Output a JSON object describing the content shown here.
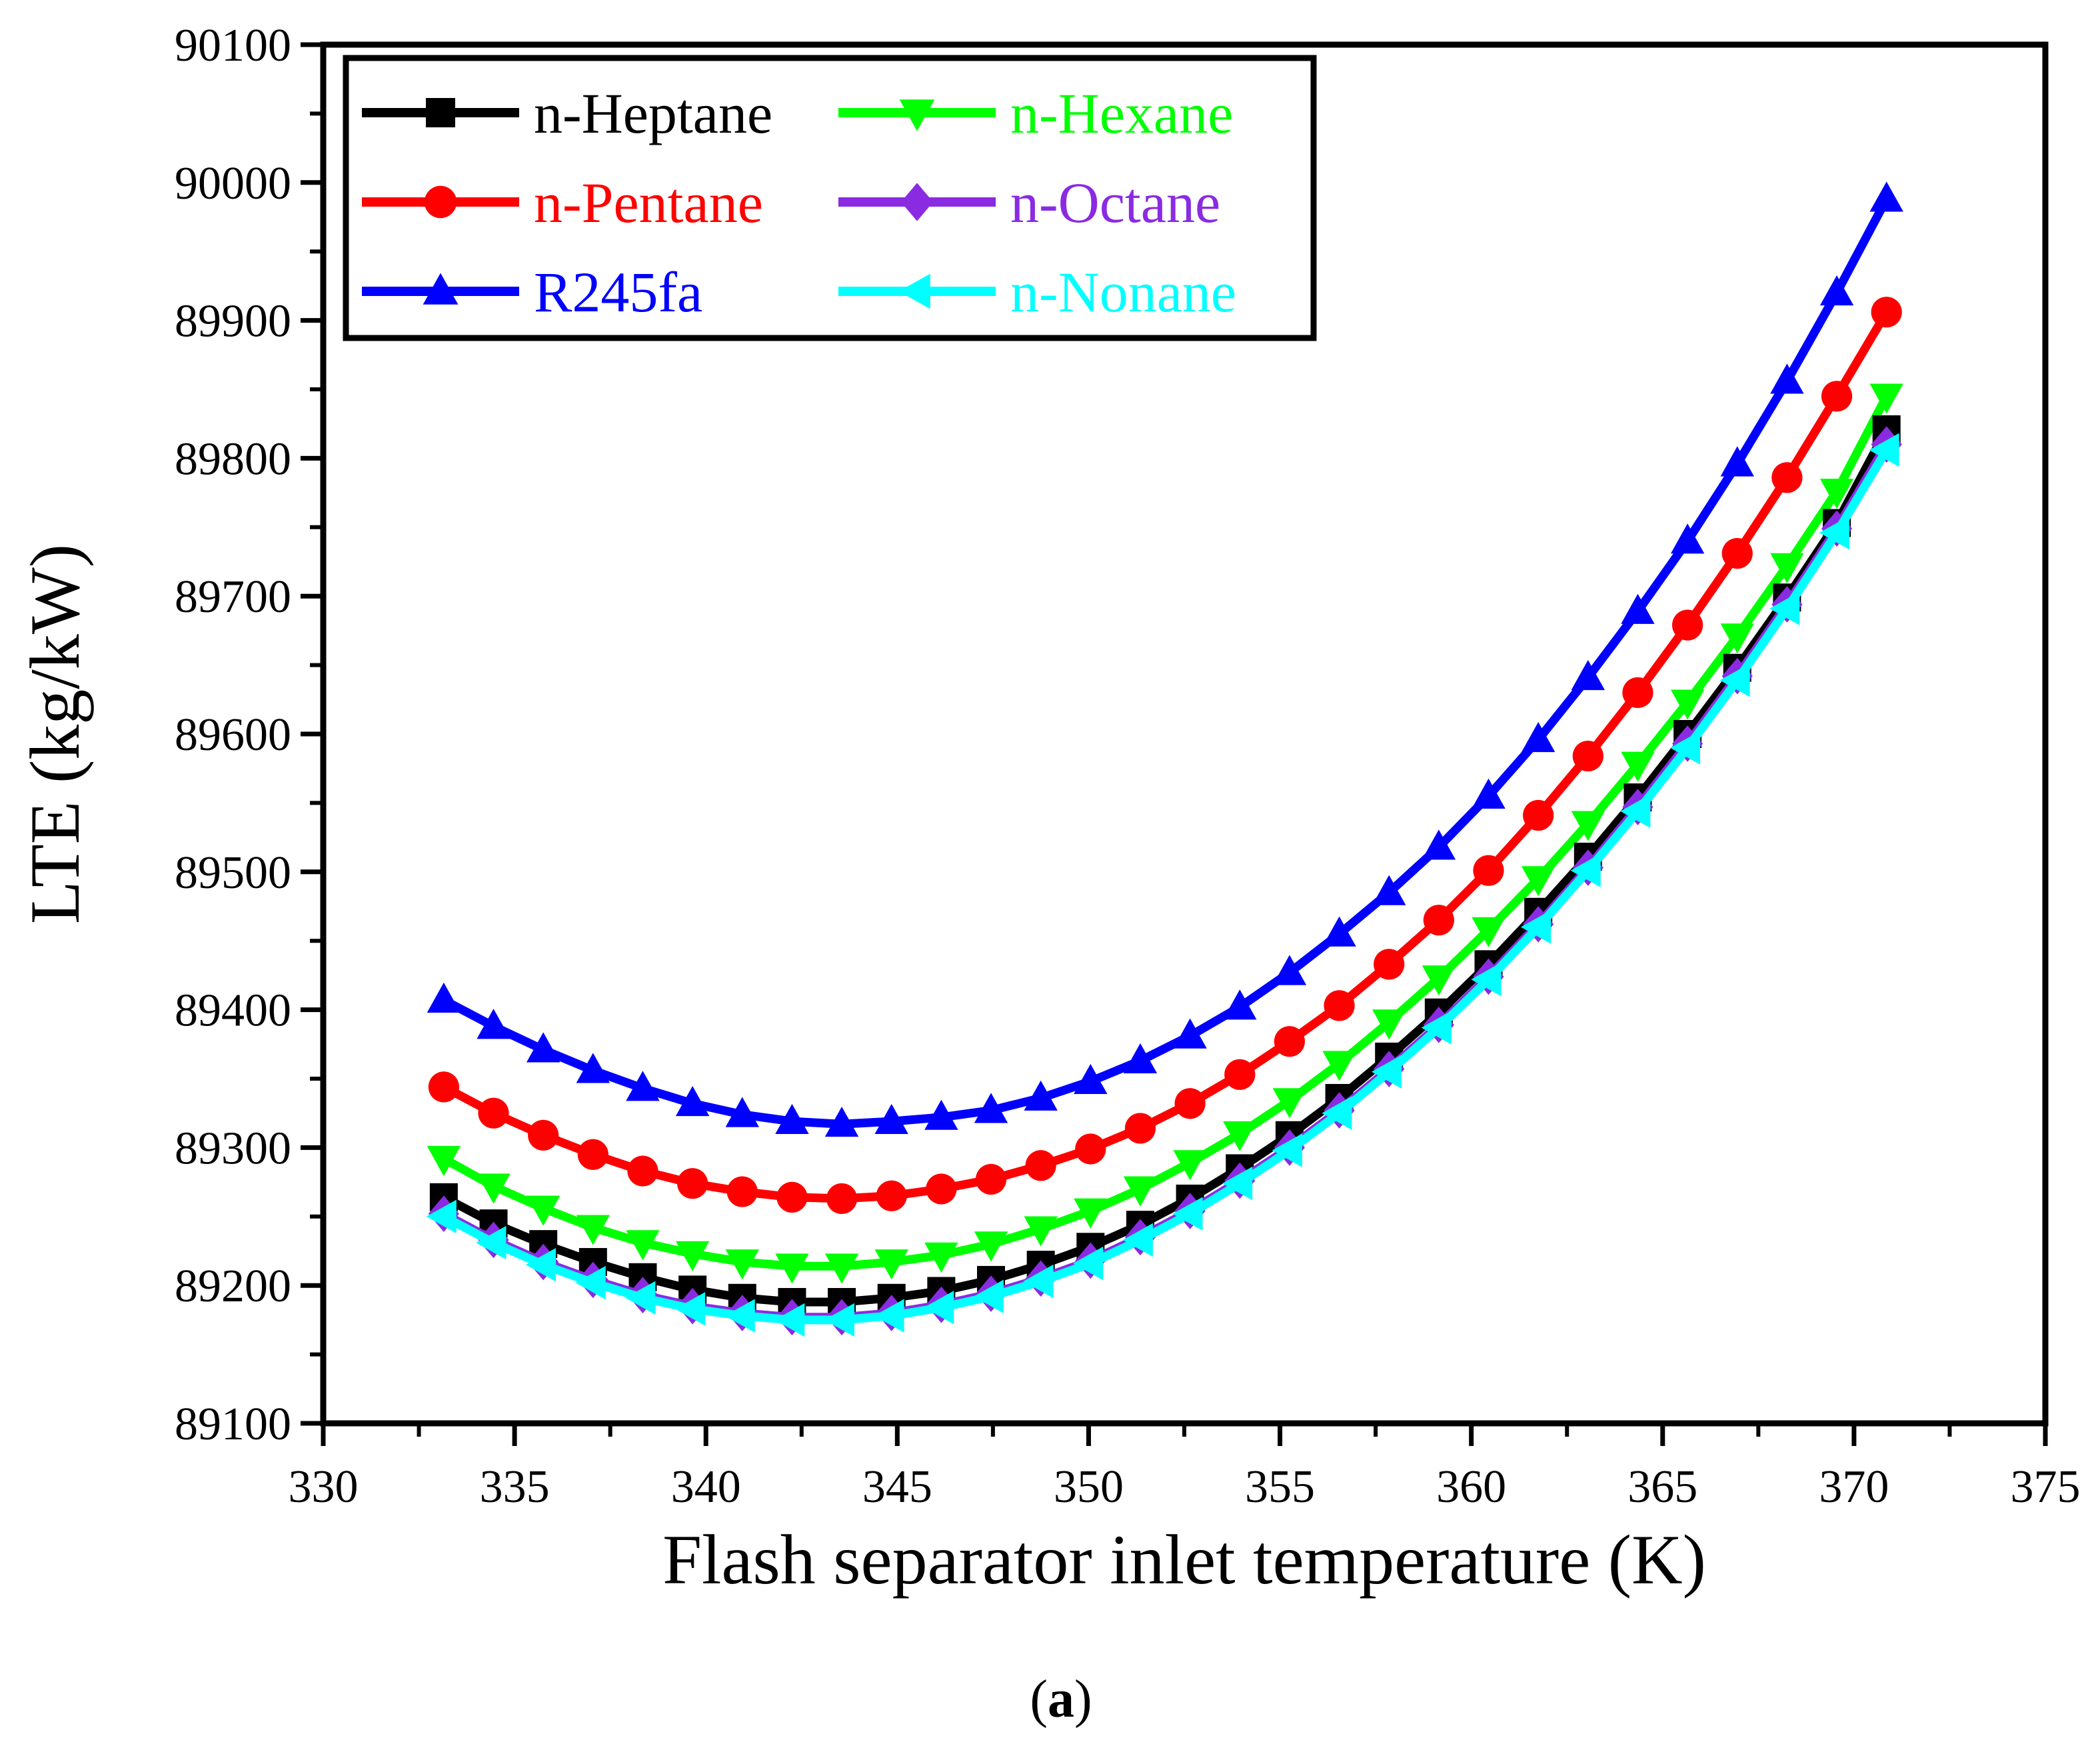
{
  "chart_data": {
    "type": "line",
    "title": "",
    "xlabel": "Flash separator inlet temperature (K)",
    "ylabel": "LTE (kg/kW)",
    "subfigure_label": "a",
    "xlim": [
      330,
      375
    ],
    "ylim": [
      89100,
      90100
    ],
    "xticks": [
      330,
      335,
      340,
      345,
      350,
      355,
      360,
      365,
      370,
      375
    ],
    "yticks": [
      89100,
      89200,
      89300,
      89400,
      89500,
      89600,
      89700,
      89800,
      89900,
      90000,
      90100
    ],
    "legend_position": "top-left",
    "x": [
      333.15,
      334.45,
      335.75,
      337.05,
      338.35,
      339.65,
      340.95,
      342.25,
      343.55,
      344.85,
      346.15,
      347.45,
      348.75,
      350.05,
      351.35,
      352.65,
      353.95,
      355.25,
      356.55,
      357.85,
      359.15,
      360.45,
      361.75,
      363.05,
      364.35,
      365.65,
      366.95,
      368.25,
      369.55,
      370.85
    ],
    "series": [
      {
        "name": "n-Heptane",
        "color": "#000000",
        "marker": "square",
        "values": [
          89264,
          89245,
          89230,
          89217,
          89206,
          89197,
          89191,
          89188,
          89188,
          89191,
          89196,
          89204,
          89215,
          89228,
          89244,
          89263,
          89285,
          89309,
          89336,
          89366,
          89398,
          89433,
          89471,
          89511,
          89554,
          89600,
          89648,
          89699,
          89753,
          89821
        ]
      },
      {
        "name": "n-Hexane",
        "color": "#00ff00",
        "marker": "triangle-down",
        "values": [
          89292,
          89272,
          89256,
          89242,
          89231,
          89223,
          89217,
          89214,
          89214,
          89217,
          89222,
          89230,
          89241,
          89254,
          89270,
          89289,
          89310,
          89334,
          89361,
          89391,
          89423,
          89458,
          89495,
          89535,
          89578,
          89623,
          89671,
          89722,
          89776,
          89845
        ]
      },
      {
        "name": "n-Pentane",
        "color": "#ff0000",
        "marker": "circle",
        "values": [
          89344,
          89325,
          89309,
          89295,
          89283,
          89274,
          89268,
          89264,
          89263,
          89265,
          89270,
          89277,
          89287,
          89299,
          89314,
          89332,
          89353,
          89377,
          89403,
          89433,
          89465,
          89501,
          89541,
          89584,
          89630,
          89679,
          89731,
          89786,
          89845,
          89906
        ]
      },
      {
        "name": "n-Octane",
        "color": "#8a2be2",
        "marker": "diamond",
        "values": [
          89252,
          89233,
          89217,
          89204,
          89193,
          89185,
          89180,
          89177,
          89177,
          89180,
          89186,
          89194,
          89205,
          89218,
          89235,
          89254,
          89276,
          89300,
          89327,
          89357,
          89389,
          89424,
          89462,
          89503,
          89547,
          89593,
          89642,
          89694,
          89749,
          89810
        ]
      },
      {
        "name": "R245fa",
        "color": "#0000ff",
        "marker": "triangle-up",
        "values": [
          89407,
          89388,
          89371,
          89356,
          89343,
          89332,
          89324,
          89319,
          89317,
          89319,
          89322,
          89327,
          89336,
          89348,
          89363,
          89381,
          89402,
          89427,
          89455,
          89485,
          89518,
          89555,
          89596,
          89641,
          89689,
          89740,
          89796,
          89856,
          89920,
          89988
        ]
      },
      {
        "name": "n-Nonane",
        "color": "#00ffff",
        "marker": "triangle-left",
        "values": [
          89250,
          89231,
          89215,
          89202,
          89191,
          89183,
          89178,
          89175,
          89175,
          89178,
          89184,
          89192,
          89203,
          89216,
          89233,
          89252,
          89274,
          89298,
          89325,
          89355,
          89387,
          89422,
          89460,
          89501,
          89544,
          89590,
          89639,
          89691,
          89746,
          89806
        ]
      }
    ]
  }
}
